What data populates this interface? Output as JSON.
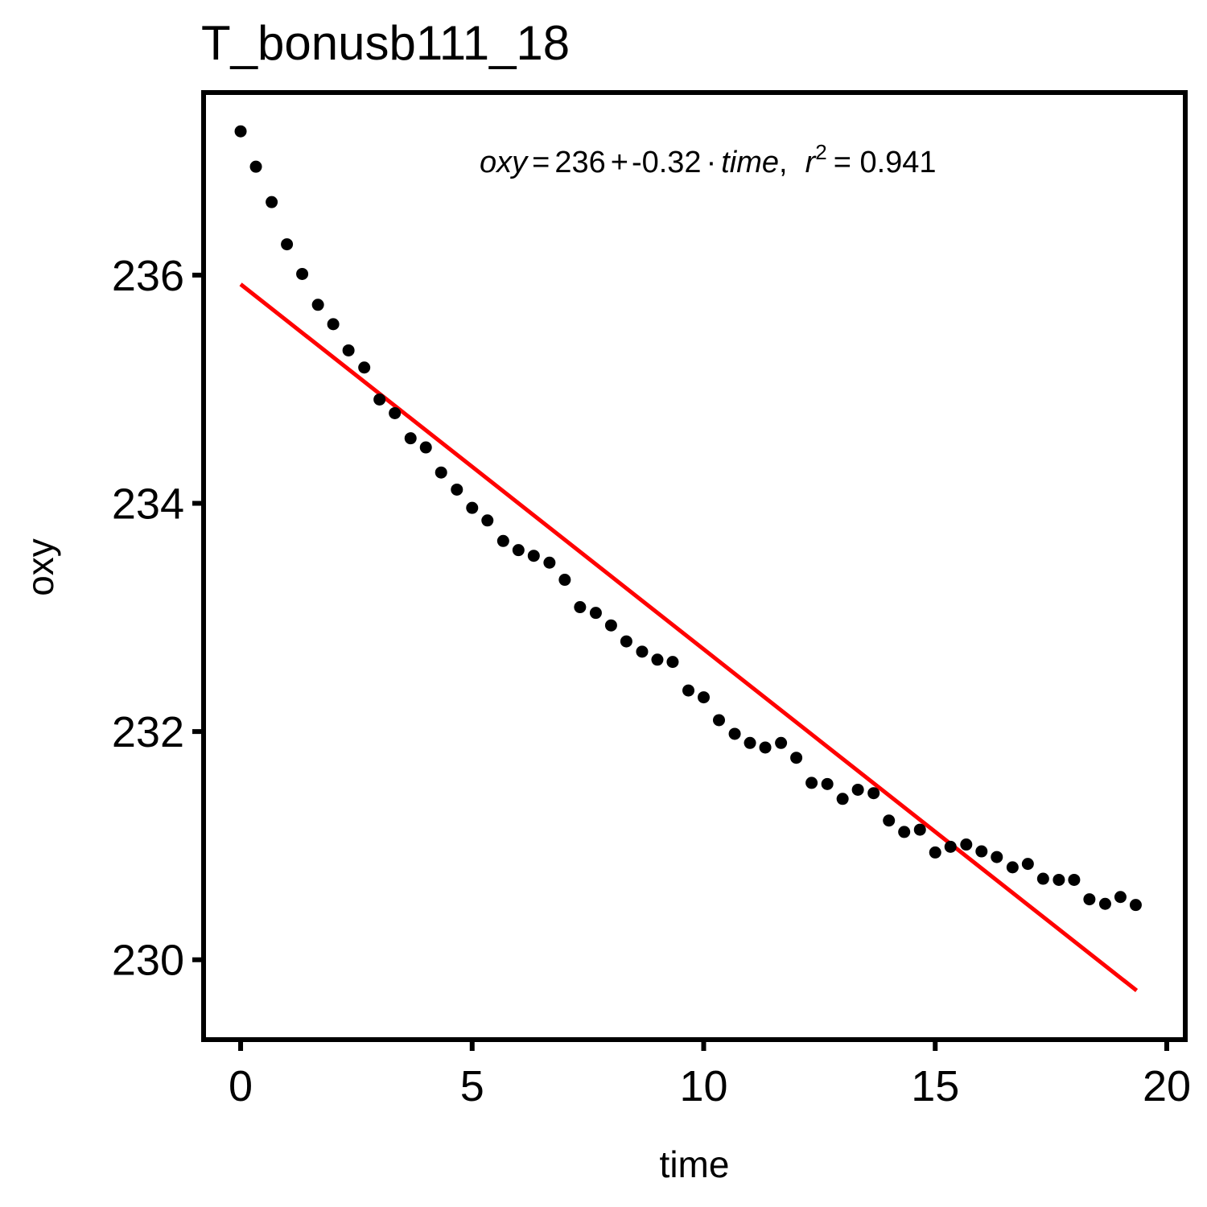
{
  "chart_data": {
    "type": "scatter",
    "title": "T_bonusb111_18",
    "xlabel": "time",
    "ylabel": "oxy",
    "xlim": [
      -0.8,
      20.4
    ],
    "ylim": [
      229.3,
      237.6
    ],
    "x_ticks": [
      0,
      5,
      10,
      15,
      20
    ],
    "y_ticks": [
      230,
      232,
      234,
      236
    ],
    "grid": false,
    "colors": {
      "points": "#000000",
      "fit_line": "#ff0000"
    },
    "equation": {
      "lhs": "oxy",
      "eq": "=",
      "intercept": "236",
      "plus": "+",
      "slope": "-0.32",
      "dot": "·",
      "var": "time",
      "comma": ",",
      "r_label": "r",
      "r_exp": "2",
      "r_value": "= 0.941"
    },
    "fit_line": {
      "x": [
        0,
        19.35
      ],
      "y": [
        235.92,
        229.73
      ]
    },
    "points": {
      "x": [
        0,
        0.33,
        0.67,
        1.0,
        1.33,
        1.67,
        2.0,
        2.33,
        2.67,
        3.0,
        3.33,
        3.67,
        4.0,
        4.33,
        4.67,
        5.0,
        5.33,
        5.67,
        6.0,
        6.33,
        6.67,
        7.0,
        7.33,
        7.67,
        8.0,
        8.33,
        8.67,
        9.0,
        9.33,
        9.67,
        10.0,
        10.33,
        10.67,
        11.0,
        11.33,
        11.67,
        12.0,
        12.33,
        12.67,
        13.0,
        13.33,
        13.67,
        14.0,
        14.33,
        14.67,
        15.0,
        15.33,
        15.67,
        16.0,
        16.33,
        16.67,
        17.0,
        17.33,
        17.67,
        18.0,
        18.33,
        18.67,
        19.0,
        19.33
      ],
      "y": [
        237.26,
        236.95,
        236.64,
        236.27,
        236.01,
        235.74,
        235.57,
        235.34,
        235.19,
        234.91,
        234.79,
        234.57,
        234.49,
        234.27,
        234.12,
        233.96,
        233.85,
        233.67,
        233.59,
        233.54,
        233.48,
        233.33,
        233.09,
        233.04,
        232.93,
        232.79,
        232.7,
        232.63,
        232.61,
        232.36,
        232.3,
        232.1,
        231.98,
        231.9,
        231.86,
        231.9,
        231.77,
        231.55,
        231.54,
        231.41,
        231.49,
        231.46,
        231.22,
        231.12,
        231.14,
        230.94,
        230.99,
        231.01,
        230.95,
        230.9,
        230.81,
        230.84,
        230.71,
        230.7,
        230.7,
        230.53,
        230.49,
        230.55,
        230.48
      ]
    }
  }
}
